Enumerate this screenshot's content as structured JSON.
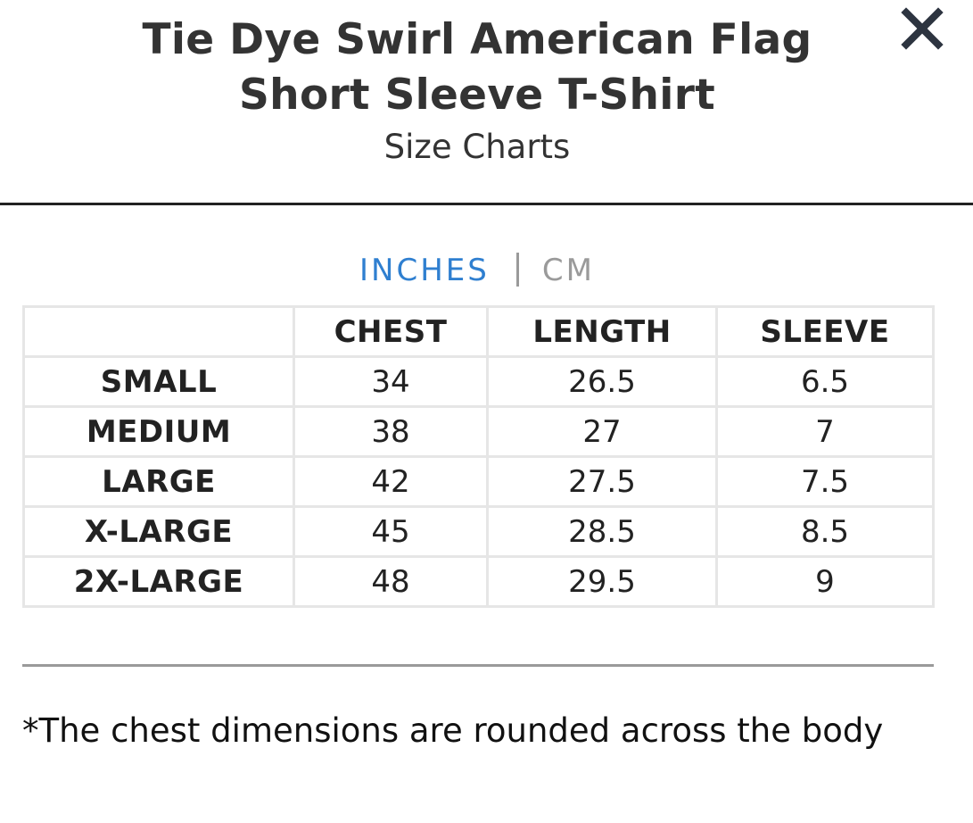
{
  "header": {
    "title": "Tie Dye Swirl American Flag Short Sleeve T-Shirt",
    "subtitle": "Size Charts",
    "close_icon": "close-icon"
  },
  "units": {
    "active": "INCHES",
    "inactive": "CM",
    "active_color": "#2f7fd0",
    "inactive_color": "#9a9a9a"
  },
  "table": {
    "columns": [
      "",
      "CHEST",
      "LENGTH",
      "SLEEVE"
    ],
    "rows": [
      {
        "size": "SMALL",
        "chest": "34",
        "length": "26.5",
        "sleeve": "6.5"
      },
      {
        "size": "MEDIUM",
        "chest": "38",
        "length": "27",
        "sleeve": "7"
      },
      {
        "size": "LARGE",
        "chest": "42",
        "length": "27.5",
        "sleeve": "7.5"
      },
      {
        "size": "X-LARGE",
        "chest": "45",
        "length": "28.5",
        "sleeve": "8.5"
      },
      {
        "size": "2X-LARGE",
        "chest": "48",
        "length": "29.5",
        "sleeve": "9"
      }
    ]
  },
  "footnote": "*The chest dimensions are rounded across the body"
}
